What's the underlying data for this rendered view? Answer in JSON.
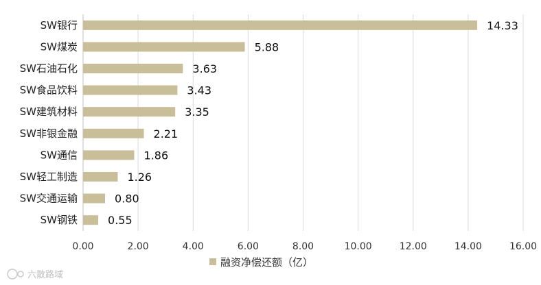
{
  "chart_data": {
    "type": "bar",
    "orientation": "horizontal",
    "categories": [
      "SW银行",
      "SW煤炭",
      "SW石油石化",
      "SW食品饮料",
      "SW建筑材料",
      "SW非银金融",
      "SW通信",
      "SW轻工制造",
      "SW交通运输",
      "SW钢铁"
    ],
    "series": [
      {
        "name": "融资净偿还额（亿）",
        "values": [
          14.33,
          5.88,
          3.63,
          3.43,
          3.35,
          2.21,
          1.86,
          1.26,
          0.8,
          0.55
        ],
        "value_labels": [
          "14.33",
          "5.88",
          "3.63",
          "3.43",
          "3.35",
          "2.21",
          "1.86",
          "1.26",
          "0.80",
          "0.55"
        ],
        "color": "#c9be9a"
      }
    ],
    "xlim": [
      0,
      16
    ],
    "xticks": [
      0,
      2,
      4,
      6,
      8,
      10,
      12,
      14,
      16
    ],
    "xtick_labels": [
      "0.00",
      "2.00",
      "4.00",
      "6.00",
      "8.00",
      "10.00",
      "12.00",
      "14.00",
      "16.00"
    ],
    "grid": true,
    "gridColor": "#d9d9d9",
    "legend": "bottom"
  },
  "watermark": "六散路域"
}
